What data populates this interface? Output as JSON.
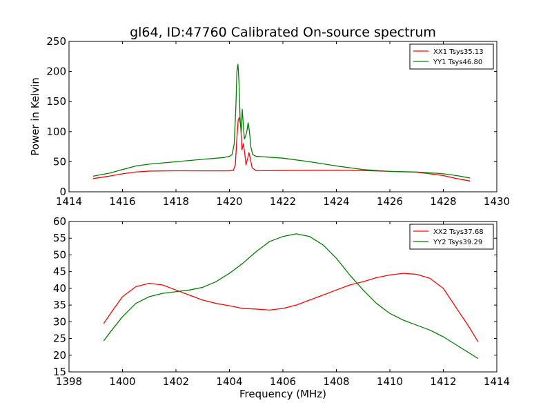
{
  "chart_data": [
    {
      "type": "line",
      "title": "gl64, ID:47760 Calibrated On-source spectrum",
      "xlabel": "",
      "ylabel": "Power in Kelvin",
      "xlim": [
        1414,
        1430
      ],
      "ylim": [
        0,
        250
      ],
      "xticks": [
        1414,
        1416,
        1418,
        1420,
        1422,
        1424,
        1426,
        1428,
        1430
      ],
      "yticks": [
        0,
        50,
        100,
        150,
        200,
        250
      ],
      "legend_position": "top-right",
      "grid": false,
      "series": [
        {
          "name": "XX1 Tsys35.13",
          "color": "#ff0000",
          "points": [
            [
              1414.9,
              22
            ],
            [
              1415.5,
              26
            ],
            [
              1416.0,
              30
            ],
            [
              1416.5,
              33
            ],
            [
              1417.0,
              34.5
            ],
            [
              1418.0,
              35
            ],
            [
              1419.0,
              34.8
            ],
            [
              1420.0,
              34.9
            ],
            [
              1420.15,
              36
            ],
            [
              1420.22,
              45
            ],
            [
              1420.28,
              90
            ],
            [
              1420.33,
              120
            ],
            [
              1420.37,
              123
            ],
            [
              1420.42,
              110
            ],
            [
              1420.47,
              70
            ],
            [
              1420.52,
              80
            ],
            [
              1420.57,
              65
            ],
            [
              1420.62,
              45
            ],
            [
              1420.68,
              55
            ],
            [
              1420.73,
              65
            ],
            [
              1420.78,
              55
            ],
            [
              1420.85,
              40
            ],
            [
              1421.0,
              35
            ],
            [
              1422.0,
              35.5
            ],
            [
              1423.0,
              36
            ],
            [
              1424.0,
              36
            ],
            [
              1425.0,
              35.5
            ],
            [
              1426.0,
              34
            ],
            [
              1427.0,
              32.5
            ],
            [
              1427.5,
              30
            ],
            [
              1428.0,
              27
            ],
            [
              1428.5,
              22
            ],
            [
              1429.0,
              18
            ]
          ]
        },
        {
          "name": "YY1 Tsys46.80",
          "color": "#008000",
          "points": [
            [
              1414.9,
              26
            ],
            [
              1415.5,
              31
            ],
            [
              1416.0,
              37
            ],
            [
              1416.5,
              43
            ],
            [
              1417.0,
              46
            ],
            [
              1418.0,
              50
            ],
            [
              1419.0,
              54
            ],
            [
              1419.8,
              57
            ],
            [
              1420.0,
              59
            ],
            [
              1420.1,
              62
            ],
            [
              1420.18,
              80
            ],
            [
              1420.24,
              140
            ],
            [
              1420.28,
              200
            ],
            [
              1420.32,
              212
            ],
            [
              1420.36,
              180
            ],
            [
              1420.4,
              120
            ],
            [
              1420.44,
              100
            ],
            [
              1420.48,
              137
            ],
            [
              1420.52,
              110
            ],
            [
              1420.56,
              88
            ],
            [
              1420.6,
              92
            ],
            [
              1420.65,
              100
            ],
            [
              1420.7,
              115
            ],
            [
              1420.75,
              100
            ],
            [
              1420.8,
              75
            ],
            [
              1420.87,
              62
            ],
            [
              1421.0,
              59
            ],
            [
              1422.0,
              56
            ],
            [
              1423.0,
              50
            ],
            [
              1424.0,
              43
            ],
            [
              1425.0,
              37
            ],
            [
              1426.0,
              34
            ],
            [
              1427.0,
              33
            ],
            [
              1428.0,
              30
            ],
            [
              1428.5,
              27
            ],
            [
              1429.0,
              23
            ]
          ]
        }
      ]
    },
    {
      "type": "line",
      "title": "",
      "xlabel": "Frequency (MHz)",
      "ylabel": "",
      "xlim": [
        1398,
        1414
      ],
      "ylim": [
        15,
        60
      ],
      "xticks": [
        1398,
        1400,
        1402,
        1404,
        1406,
        1408,
        1410,
        1412,
        1414
      ],
      "yticks": [
        15,
        20,
        25,
        30,
        35,
        40,
        45,
        50,
        55,
        60
      ],
      "legend_position": "top-right",
      "grid": false,
      "series": [
        {
          "name": "XX2 Tsys37.68",
          "color": "#ff0000",
          "points": [
            [
              1399.3,
              29.5
            ],
            [
              1399.6,
              33
            ],
            [
              1400.0,
              37.5
            ],
            [
              1400.5,
              40.5
            ],
            [
              1401.0,
              41.5
            ],
            [
              1401.5,
              41
            ],
            [
              1402.0,
              39.5
            ],
            [
              1402.5,
              38
            ],
            [
              1403.0,
              36.5
            ],
            [
              1403.5,
              35.5
            ],
            [
              1404.0,
              34.8
            ],
            [
              1404.5,
              34
            ],
            [
              1405.0,
              33.8
            ],
            [
              1405.5,
              33.5
            ],
            [
              1406.0,
              34
            ],
            [
              1406.5,
              35
            ],
            [
              1407.0,
              36.5
            ],
            [
              1407.5,
              38
            ],
            [
              1408.0,
              39.5
            ],
            [
              1408.5,
              41
            ],
            [
              1409.0,
              42
            ],
            [
              1409.5,
              43.2
            ],
            [
              1410.0,
              44
            ],
            [
              1410.5,
              44.5
            ],
            [
              1411.0,
              44.2
            ],
            [
              1411.5,
              43
            ],
            [
              1412.0,
              40
            ],
            [
              1412.5,
              34
            ],
            [
              1413.0,
              28
            ],
            [
              1413.3,
              24
            ]
          ]
        },
        {
          "name": "YY2 Tsys39.29",
          "color": "#008000",
          "points": [
            [
              1399.3,
              24.3
            ],
            [
              1399.6,
              27.5
            ],
            [
              1400.0,
              31.5
            ],
            [
              1400.5,
              35.5
            ],
            [
              1401.0,
              37.5
            ],
            [
              1401.5,
              38.5
            ],
            [
              1402.0,
              39
            ],
            [
              1402.5,
              39.5
            ],
            [
              1403.0,
              40.3
            ],
            [
              1403.5,
              42
            ],
            [
              1404.0,
              44.5
            ],
            [
              1404.5,
              47.5
            ],
            [
              1405.0,
              51
            ],
            [
              1405.5,
              54
            ],
            [
              1406.0,
              55.5
            ],
            [
              1406.5,
              56.3
            ],
            [
              1407.0,
              55.5
            ],
            [
              1407.5,
              53
            ],
            [
              1408.0,
              49
            ],
            [
              1408.5,
              44
            ],
            [
              1409.0,
              39.5
            ],
            [
              1409.5,
              35.5
            ],
            [
              1410.0,
              32.5
            ],
            [
              1410.5,
              30.5
            ],
            [
              1411.0,
              29
            ],
            [
              1411.5,
              27.5
            ],
            [
              1412.0,
              25.5
            ],
            [
              1412.5,
              23
            ],
            [
              1413.0,
              20.5
            ],
            [
              1413.3,
              19
            ]
          ]
        }
      ]
    }
  ]
}
